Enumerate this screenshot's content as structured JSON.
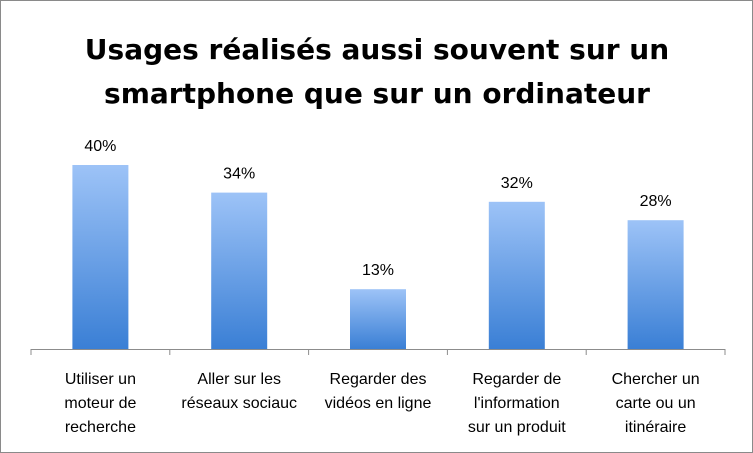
{
  "chart_data": {
    "type": "bar",
    "title": "Usages réalisés aussi souvent sur un smartphone que sur un ordinateur",
    "title_lines": [
      "Usages réalisés aussi souvent sur un",
      "smartphone que sur un ordinateur"
    ],
    "categories": [
      "Utiliser un moteur de recherche",
      "Aller sur les réseaux sociauc",
      "Regarder des vidéos en ligne",
      "Regarder de l'information sur un produit",
      "Chercher un carte ou un itinéraire"
    ],
    "category_lines": [
      [
        "Utiliser un",
        "moteur de",
        "recherche"
      ],
      [
        "Aller sur les",
        "réseaux sociauc"
      ],
      [
        "Regarder des",
        "vidéos en ligne"
      ],
      [
        "Regarder de",
        "l'information",
        "sur un produit"
      ],
      [
        "Chercher un",
        "carte ou un",
        "itinéraire"
      ]
    ],
    "values": [
      40,
      34,
      13,
      32,
      28
    ],
    "data_labels": [
      "40%",
      "34%",
      "13%",
      "32%",
      "28%"
    ],
    "unit": "%",
    "ylim": [
      0,
      40
    ],
    "grid": false,
    "legend": "none",
    "colors": {
      "bar_top": "#9DC3F7",
      "bar_bottom": "#3A7FD5",
      "axis": "#8C8C8C"
    }
  }
}
